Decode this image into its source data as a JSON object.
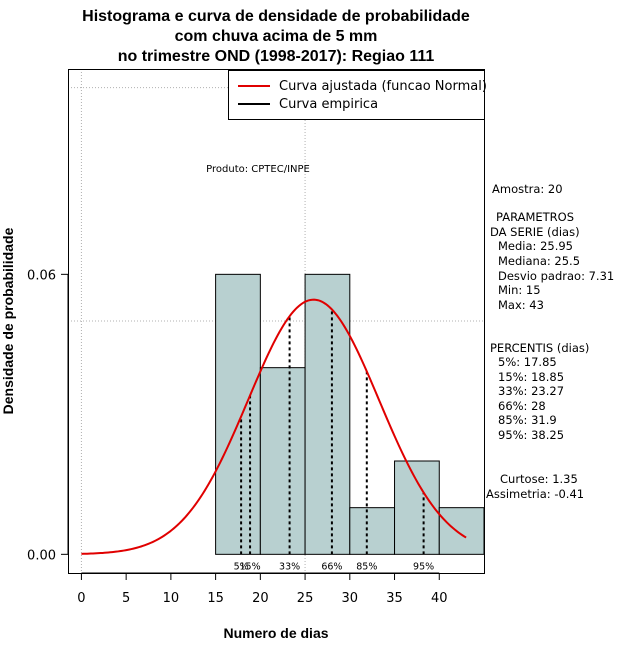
{
  "chart_data": {
    "type": "histogram",
    "title_lines": [
      "Histograma e curva de densidade de probabilidade",
      "com chuva acima de 5 mm",
      "no trimestre OND (1998-2017): Regiao 111"
    ],
    "xlabel": "Numero de dias",
    "ylabel": "Densidade de probabilidade",
    "xlim": [
      -1.5,
      45
    ],
    "ylim": [
      -0.004,
      0.104
    ],
    "x_ticks": [
      "0",
      "5",
      "10",
      "15",
      "20",
      "25",
      "30",
      "35",
      "40"
    ],
    "y_ticks": [
      "0.00",
      "0.06"
    ],
    "bins": [
      {
        "from": 15,
        "to": 20,
        "density": 0.06
      },
      {
        "from": 20,
        "to": 25,
        "density": 0.04
      },
      {
        "from": 25,
        "to": 30,
        "density": 0.06
      },
      {
        "from": 30,
        "to": 35,
        "density": 0.01
      },
      {
        "from": 35,
        "to": 40,
        "density": 0.02
      },
      {
        "from": 40,
        "to": 45,
        "density": 0.01
      }
    ],
    "fitted_curve": {
      "distribution": "Normal",
      "mean": 25.95,
      "sd": 7.31,
      "from": 0,
      "to": 43
    },
    "percentile_marks": [
      {
        "label": "5%",
        "x": 17.85
      },
      {
        "label": "15%",
        "x": 18.85
      },
      {
        "label": "33%",
        "x": 23.27
      },
      {
        "label": "66%",
        "x": 28
      },
      {
        "label": "85%",
        "x": 31.9
      },
      {
        "label": "95%",
        "x": 38.25
      }
    ],
    "legend": {
      "placement": "top-right",
      "items": [
        {
          "label": "Curva ajustada (funcao Normal)",
          "color": "#e00000"
        },
        {
          "label": "Curva empirica",
          "color": "#000000"
        }
      ]
    },
    "annotation": "Produto: CPTEC/INPE",
    "bar_fill": "#b8d0d0",
    "grid": true
  },
  "side_panel": {
    "amostra": "Amostra: 20",
    "param_title_1": "PARAMETROS",
    "param_title_2": "DA SERIE (dias)",
    "media": "Media: 25.95",
    "mediana": "Mediana: 25.5",
    "desvio": "Desvio padrao: 7.31",
    "min": "Min: 15",
    "max": "Max: 43",
    "perc_title": "PERCENTIS (dias)",
    "p5": "5%: 17.85",
    "p15": "15%: 18.85",
    "p33": "33%: 23.27",
    "p66": "66%: 28",
    "p85": "85%: 31.9",
    "p95": "95%: 38.25",
    "curtose": "Curtose: 1.35",
    "assimetria": "Assimetria: -0.41"
  }
}
